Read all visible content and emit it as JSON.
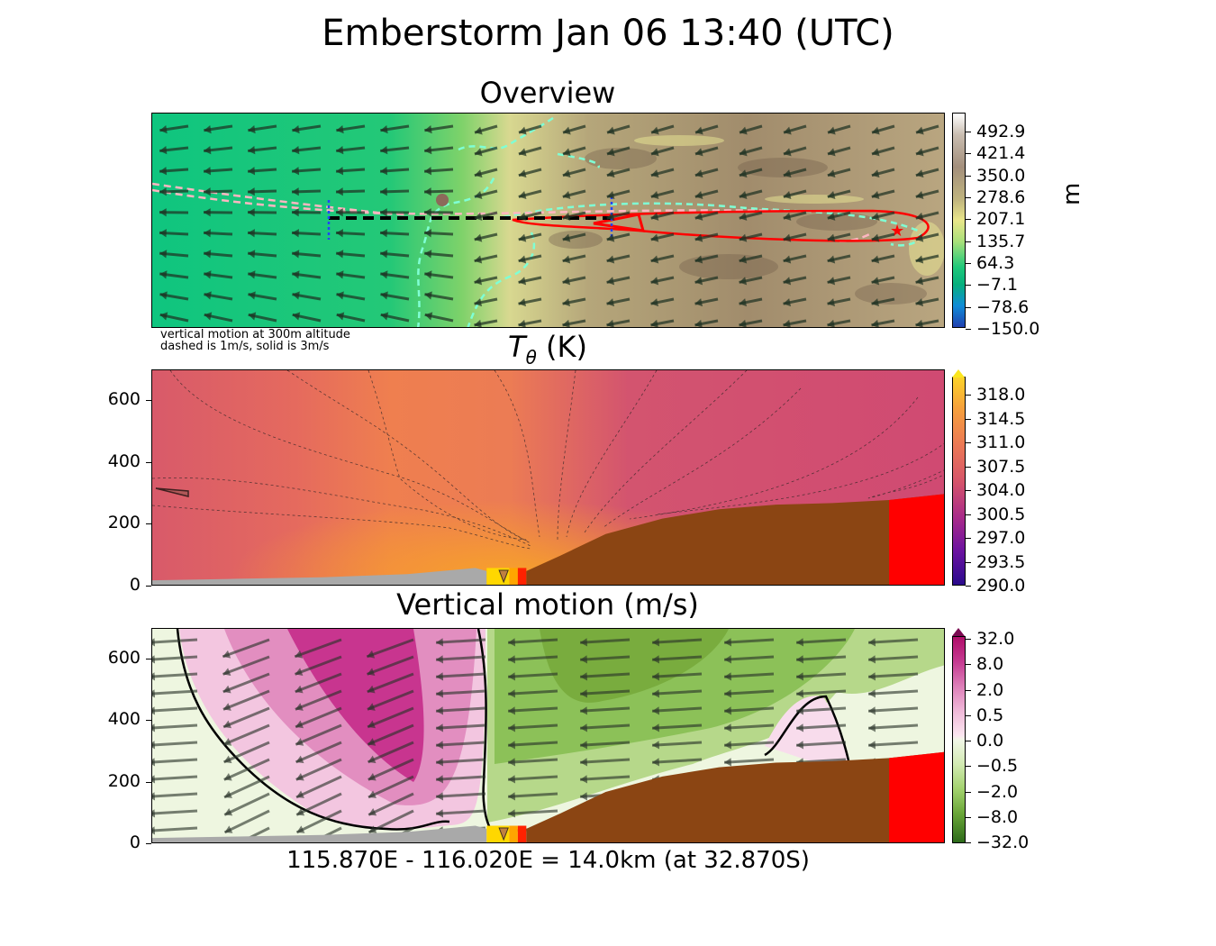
{
  "figure": {
    "suptitle": "Emberstorm Jan 06 13:40 (UTC)",
    "xlabel": "115.870E - 116.020E = 14.0km (at 32.870S)"
  },
  "overview": {
    "title": "Overview",
    "note_line1": "vertical motion at 300m altitude",
    "note_line2": "dashed is 1m/s, solid is 3m/s",
    "colorbar_unit": "m",
    "colorbar_ticks": [
      "492.9",
      "421.4",
      "350.0",
      "278.6",
      "207.1",
      "135.7",
      "64.3",
      "−7.1",
      "−78.6",
      "−150.0"
    ]
  },
  "theta": {
    "title_symbol": "T",
    "title_sub": "θ",
    "title_unit": " (K)",
    "yticks": [
      "600",
      "400",
      "200",
      "0"
    ],
    "colorbar_ticks": [
      "318.0",
      "314.5",
      "311.0",
      "307.5",
      "304.0",
      "300.5",
      "297.0",
      "293.5",
      "290.0"
    ]
  },
  "vertical": {
    "title": "Vertical motion (m/s)",
    "yticks": [
      "600",
      "400",
      "200",
      "0"
    ],
    "colorbar_ticks": [
      "32.0",
      "8.0",
      "2.0",
      "0.5",
      "0.0",
      "−0.5",
      "−2.0",
      "−8.0",
      "−32.0"
    ]
  },
  "colors": {
    "terrain_fill": "#8b4513",
    "fire_red": "#ff0000",
    "ocean_gray": "#a9a9a9",
    "overview_green": "#1fc878",
    "theta_rose": "#d44a6e",
    "updraft_pink": "#c8358f",
    "downdraft_green": "#7ab648"
  },
  "chart_data": [
    {
      "type": "heatmap",
      "name": "Overview",
      "field": "terrain height (m) with wind vectors and 300m vertical motion contours",
      "clim": [
        -150.0,
        492.9
      ],
      "transect_lon": [
        115.87,
        116.02
      ],
      "transect_lat": -32.87,
      "contour_levels_ms": {
        "dashed": 1,
        "solid": 3
      }
    },
    {
      "type": "heatmap",
      "name": "T_theta (K) cross section",
      "xlim_km": [
        0,
        14.0
      ],
      "ylim": [
        0,
        700
      ],
      "clim": [
        290.0,
        318.0
      ],
      "terrain_profile": {
        "x_km": [
          0,
          1.5,
          3.0,
          4.5,
          5.7,
          6.4,
          7.2,
          8.0,
          9.0,
          10.0,
          11.0,
          12.0,
          13.0,
          14.0
        ],
        "z_m": [
          20,
          25,
          30,
          40,
          60,
          50,
          100,
          170,
          220,
          250,
          265,
          270,
          280,
          300
        ]
      }
    },
    {
      "type": "heatmap",
      "name": "Vertical motion (m/s) cross section",
      "xlim_km": [
        0,
        14.0
      ],
      "ylim": [
        0,
        700
      ],
      "clim": [
        -32.0,
        32.0
      ],
      "zero_contour": true
    }
  ]
}
